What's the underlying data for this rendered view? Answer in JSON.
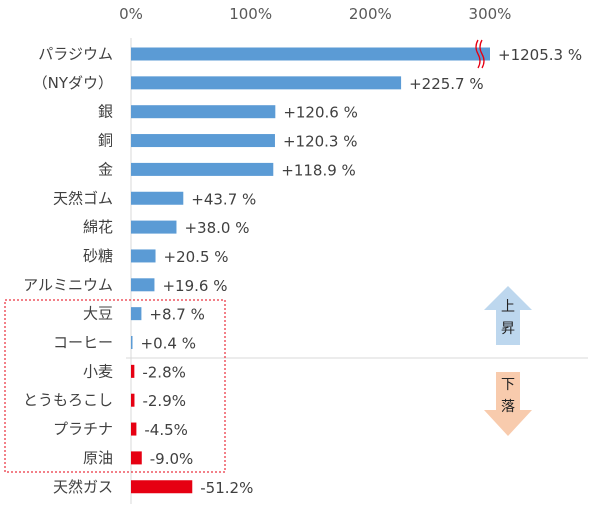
{
  "chart_data": {
    "type": "bar",
    "orientation": "horizontal",
    "axis_ticks": [
      "0%",
      "100%",
      "200%",
      "300%"
    ],
    "xlim": [
      0,
      300
    ],
    "axis_break_on": "パラジウム",
    "categories": [
      "パラジウム",
      "（NYダウ）",
      "銀",
      "銅",
      "金",
      "天然ゴム",
      "綿花",
      "砂糖",
      "アルミニウム",
      "大豆",
      "コーヒー",
      "小麦",
      "とうもろこし",
      "プラチナ",
      "原油",
      "天然ガス"
    ],
    "values": [
      1205.3,
      225.7,
      120.6,
      120.3,
      118.9,
      43.7,
      38.0,
      20.5,
      19.6,
      8.7,
      0.4,
      -2.8,
      -2.9,
      -4.5,
      -9.0,
      -51.2
    ],
    "value_labels": [
      "+1205.3 %",
      "+225.7 %",
      "+120.6 %",
      "+120.3 %",
      "+118.9 %",
      "+43.7 %",
      "+38.0 %",
      "+20.5 %",
      "+19.6 %",
      "+8.7 %",
      "+0.4 %",
      "-2.8%",
      "-2.9%",
      "-4.5%",
      "-9.0%",
      "-51.2%"
    ],
    "highlight_box_categories": [
      "大豆",
      "コーヒー",
      "小麦",
      "とうもろこし",
      "プラチナ",
      "原油"
    ],
    "grid": false,
    "legend": "none"
  },
  "colors": {
    "positive_bar": "#5b9bd5",
    "negative_bar": "#e60012",
    "up_arrow": "#bdd7ee",
    "down_arrow": "#f8cbad",
    "highlight_box": "#e60012",
    "axis_break": "#e60012",
    "divider": "#d9d9d9"
  },
  "annotations": {
    "up_label": "上昇",
    "down_label": "下落"
  }
}
